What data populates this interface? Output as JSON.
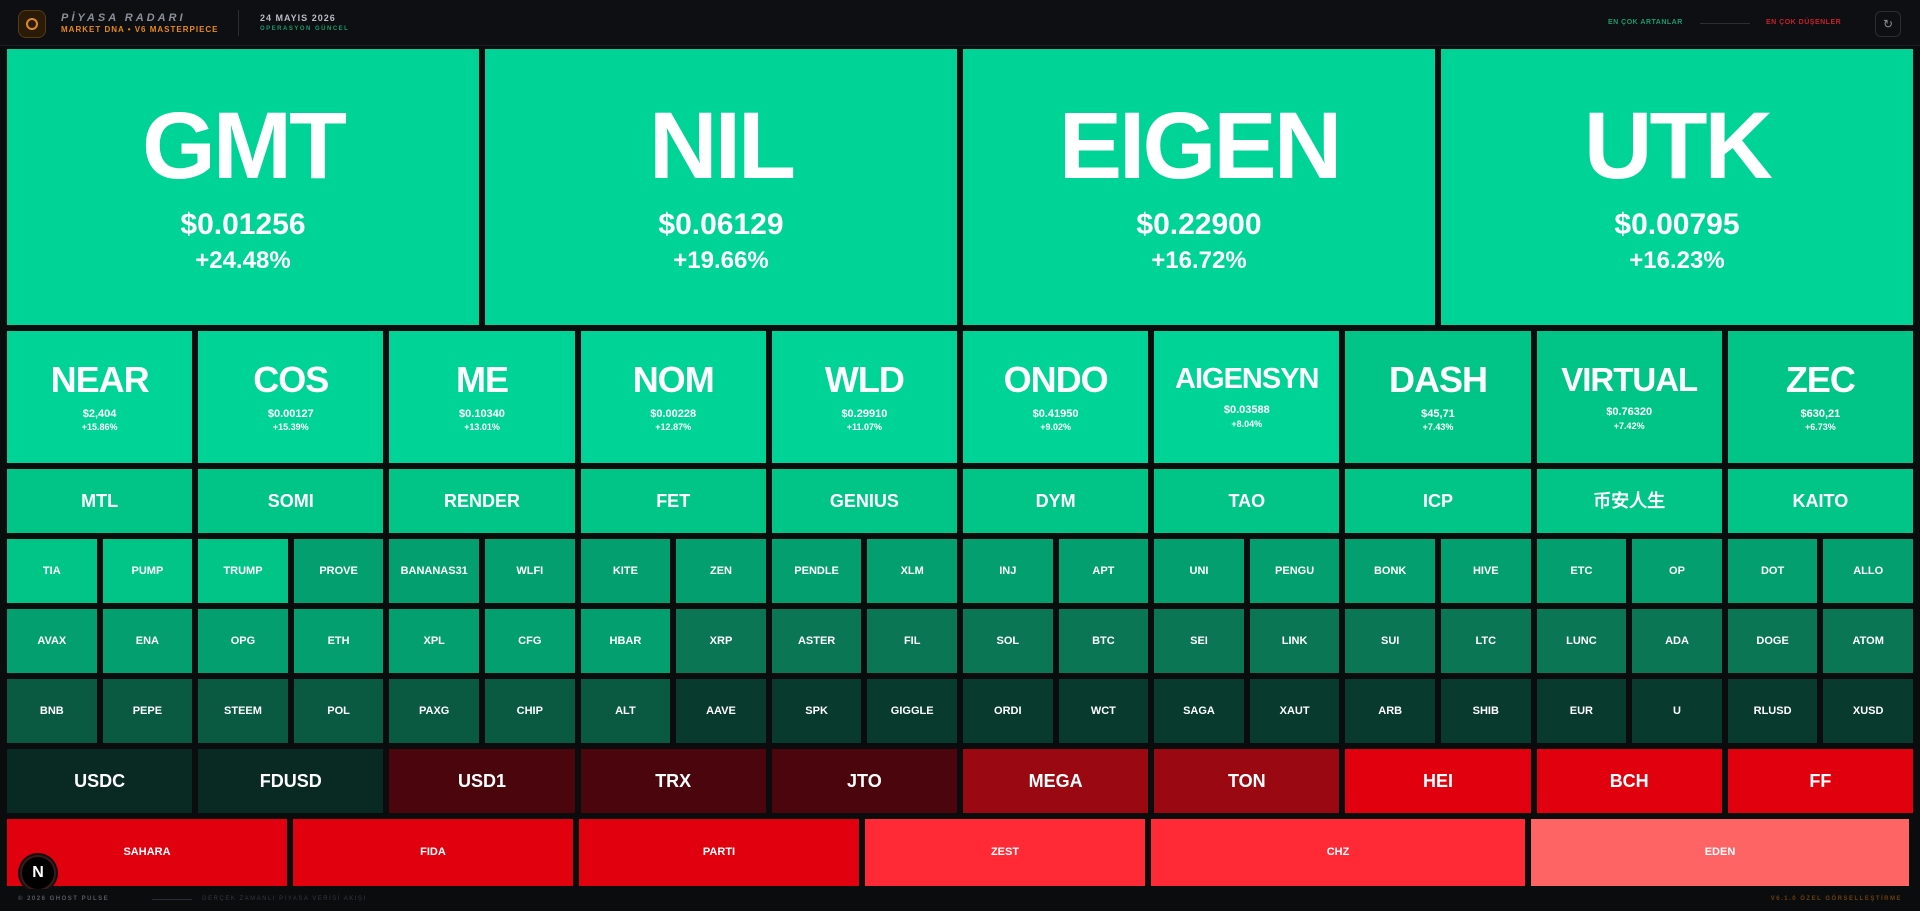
{
  "header": {
    "brand_title": "PİYASA RADARI",
    "brand_subtitle": "MARKET DNA • V6 MASTERPIECE",
    "date": "24 MAYIS 2026",
    "status": "OPERASYON GÜNCEL",
    "legend_up": "EN ÇOK ARTANLAR",
    "legend_down": "EN ÇOK DÜŞENLER",
    "refresh_icon": "refresh-icon"
  },
  "footer": {
    "copyright": "© 2026 GHOST PULSE",
    "stream": "GERÇEK ZAMANLI PİYASA VERİSİ AKIŞI",
    "version": "V6.1.0 ÖZEL GÖRSELLEŞTİRME"
  },
  "badge": "N",
  "colors": {
    "strong_up": "#00d396",
    "up": "#00c587",
    "mild_up": "#049f6e",
    "slight_up": "#0b7654",
    "flat_up": "#0a5a42",
    "near_flat": "#083a2d",
    "flat": "#082a22",
    "slight_down": "#4a060c",
    "mild_down": "#9a0812",
    "down": "#e0000e",
    "strong_down": "#ff2a36",
    "extreme_down": "#ff6464"
  },
  "tiles": [
    {
      "symbol": "GMT",
      "price": "$0.01256",
      "change": "+24.48%",
      "color": "strong_up"
    },
    {
      "symbol": "NIL",
      "price": "$0.06129",
      "change": "+19.66%",
      "color": "strong_up"
    },
    {
      "symbol": "EIGEN",
      "price": "$0.22900",
      "change": "+16.72%",
      "color": "strong_up"
    },
    {
      "symbol": "UTK",
      "price": "$0.00795",
      "change": "+16.23%",
      "color": "strong_up"
    },
    {
      "symbol": "NEAR",
      "price": "$2,404",
      "change": "+15.86%",
      "color": "strong_up"
    },
    {
      "symbol": "COS",
      "price": "$0.00127",
      "change": "+15.39%",
      "color": "strong_up"
    },
    {
      "symbol": "ME",
      "price": "$0.10340",
      "change": "+13.01%",
      "color": "strong_up"
    },
    {
      "symbol": "NOM",
      "price": "$0.00228",
      "change": "+12.87%",
      "color": "strong_up"
    },
    {
      "symbol": "WLD",
      "price": "$0.29910",
      "change": "+11.07%",
      "color": "strong_up"
    },
    {
      "symbol": "ONDO",
      "price": "$0.41950",
      "change": "+9.02%",
      "color": "strong_up"
    },
    {
      "symbol": "AIGENSYN",
      "price": "$0.03588",
      "change": "+8.04%",
      "color": "strong_up"
    },
    {
      "symbol": "DASH",
      "price": "$45,71",
      "change": "+7.43%",
      "color": "up"
    },
    {
      "symbol": "VIRTUAL",
      "price": "$0.76320",
      "change": "+7.42%",
      "color": "up"
    },
    {
      "symbol": "ZEC",
      "price": "$630,21",
      "change": "+6.73%",
      "color": "up"
    },
    {
      "symbol": "MTL",
      "color": "up"
    },
    {
      "symbol": "SOMI",
      "color": "up"
    },
    {
      "symbol": "RENDER",
      "color": "up"
    },
    {
      "symbol": "FET",
      "color": "up"
    },
    {
      "symbol": "GENIUS",
      "color": "up"
    },
    {
      "symbol": "DYM",
      "color": "up"
    },
    {
      "symbol": "TAO",
      "color": "up"
    },
    {
      "symbol": "ICP",
      "color": "up"
    },
    {
      "symbol": "币安人生",
      "color": "up"
    },
    {
      "symbol": "KAITO",
      "color": "up"
    },
    {
      "symbol": "TIA",
      "color": "up"
    },
    {
      "symbol": "PUMP",
      "color": "up"
    },
    {
      "symbol": "TRUMP",
      "color": "up"
    },
    {
      "symbol": "PROVE",
      "color": "mild_up"
    },
    {
      "symbol": "BANANAS31",
      "color": "mild_up"
    },
    {
      "symbol": "WLFI",
      "color": "mild_up"
    },
    {
      "symbol": "KITE",
      "color": "mild_up"
    },
    {
      "symbol": "ZEN",
      "color": "mild_up"
    },
    {
      "symbol": "PENDLE",
      "color": "mild_up"
    },
    {
      "symbol": "XLM",
      "color": "mild_up"
    },
    {
      "symbol": "INJ",
      "color": "mild_up"
    },
    {
      "symbol": "APT",
      "color": "mild_up"
    },
    {
      "symbol": "UNI",
      "color": "mild_up"
    },
    {
      "symbol": "PENGU",
      "color": "mild_up"
    },
    {
      "symbol": "BONK",
      "color": "mild_up"
    },
    {
      "symbol": "HIVE",
      "color": "mild_up"
    },
    {
      "symbol": "ETC",
      "color": "mild_up"
    },
    {
      "symbol": "OP",
      "color": "mild_up"
    },
    {
      "symbol": "DOT",
      "color": "mild_up"
    },
    {
      "symbol": "ALLO",
      "color": "mild_up"
    },
    {
      "symbol": "AVAX",
      "color": "mild_up"
    },
    {
      "symbol": "ENA",
      "color": "mild_up"
    },
    {
      "symbol": "OPG",
      "color": "mild_up"
    },
    {
      "symbol": "ETH",
      "color": "mild_up"
    },
    {
      "symbol": "XPL",
      "color": "mild_up"
    },
    {
      "symbol": "CFG",
      "color": "mild_up"
    },
    {
      "symbol": "HBAR",
      "color": "mild_up"
    },
    {
      "symbol": "XRP",
      "color": "slight_up"
    },
    {
      "symbol": "ASTER",
      "color": "slight_up"
    },
    {
      "symbol": "FIL",
      "color": "slight_up"
    },
    {
      "symbol": "SOL",
      "color": "slight_up"
    },
    {
      "symbol": "BTC",
      "color": "slight_up"
    },
    {
      "symbol": "SEI",
      "color": "slight_up"
    },
    {
      "symbol": "LINK",
      "color": "slight_up"
    },
    {
      "symbol": "SUI",
      "color": "slight_up"
    },
    {
      "symbol": "LTC",
      "color": "slight_up"
    },
    {
      "symbol": "LUNC",
      "color": "slight_up"
    },
    {
      "symbol": "ADA",
      "color": "slight_up"
    },
    {
      "symbol": "DOGE",
      "color": "slight_up"
    },
    {
      "symbol": "ATOM",
      "color": "slight_up"
    },
    {
      "symbol": "BNB",
      "color": "flat_up"
    },
    {
      "symbol": "PEPE",
      "color": "flat_up"
    },
    {
      "symbol": "STEEM",
      "color": "flat_up"
    },
    {
      "symbol": "POL",
      "color": "flat_up"
    },
    {
      "symbol": "PAXG",
      "color": "flat_up"
    },
    {
      "symbol": "CHIP",
      "color": "flat_up"
    },
    {
      "symbol": "ALT",
      "color": "flat_up"
    },
    {
      "symbol": "AAVE",
      "color": "near_flat"
    },
    {
      "symbol": "SPK",
      "color": "near_flat"
    },
    {
      "symbol": "GIGGLE",
      "color": "near_flat"
    },
    {
      "symbol": "ORDI",
      "color": "near_flat"
    },
    {
      "symbol": "WCT",
      "color": "near_flat"
    },
    {
      "symbol": "SAGA",
      "color": "near_flat"
    },
    {
      "symbol": "XAUT",
      "color": "near_flat"
    },
    {
      "symbol": "ARB",
      "color": "near_flat"
    },
    {
      "symbol": "SHIB",
      "color": "near_flat"
    },
    {
      "symbol": "EUR",
      "color": "near_flat"
    },
    {
      "symbol": "U",
      "color": "near_flat"
    },
    {
      "symbol": "RLUSD",
      "color": "near_flat"
    },
    {
      "symbol": "XUSD",
      "color": "near_flat"
    },
    {
      "symbol": "USDC",
      "color": "flat"
    },
    {
      "symbol": "FDUSD",
      "color": "flat"
    },
    {
      "symbol": "USD1",
      "color": "slight_down"
    },
    {
      "symbol": "TRX",
      "color": "slight_down"
    },
    {
      "symbol": "JTO",
      "color": "slight_down"
    },
    {
      "symbol": "MEGA",
      "color": "mild_down"
    },
    {
      "symbol": "TON",
      "color": "mild_down"
    },
    {
      "symbol": "HEI",
      "color": "down"
    },
    {
      "symbol": "BCH",
      "color": "down"
    },
    {
      "symbol": "FF",
      "color": "down"
    },
    {
      "symbol": "SAHARA",
      "color": "down"
    },
    {
      "symbol": "FIDA",
      "color": "down"
    },
    {
      "symbol": "PARTI",
      "color": "down"
    },
    {
      "symbol": "ZEST",
      "color": "strong_down"
    },
    {
      "symbol": "CHZ",
      "color": "strong_down"
    },
    {
      "symbol": "EDEN",
      "color": "extreme_down"
    }
  ]
}
